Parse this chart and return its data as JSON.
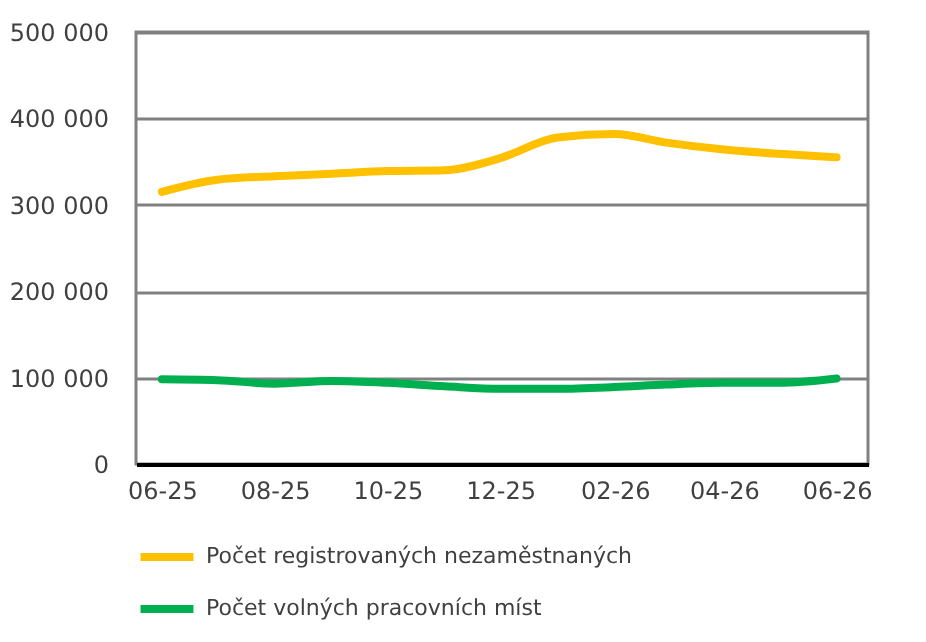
{
  "chart_data": {
    "type": "line",
    "x": [
      "2025-06",
      "2025-07",
      "2025-08",
      "2025-09",
      "2025-10",
      "2025-11",
      "2025-12",
      "2026-01",
      "2026-02",
      "2026-03",
      "2026-04",
      "2026-05",
      "2026-06"
    ],
    "series": [
      {
        "name": "Počet registrovaných nezaměstnaných",
        "color": "#ffc000",
        "values": [
          315000,
          329000,
          333000,
          336000,
          339000,
          340000,
          354000,
          378000,
          382000,
          372000,
          364000,
          359000,
          355000
        ]
      },
      {
        "name": "Počet volných pracovních míst",
        "color": "#00b050",
        "values": [
          98000,
          97000,
          93000,
          96000,
          94000,
          90000,
          87000,
          87000,
          89000,
          92000,
          94000,
          94000,
          99000
        ]
      }
    ],
    "xlim": [
      "2025-05-18",
      "2026-06-18"
    ],
    "xticks": [
      {
        "value": "2025-06",
        "label": "06-25"
      },
      {
        "value": "2025-08",
        "label": "08-25"
      },
      {
        "value": "2025-10",
        "label": "10-25"
      },
      {
        "value": "2025-12",
        "label": "12-25"
      },
      {
        "value": "2026-02",
        "label": "02-26"
      },
      {
        "value": "2026-04",
        "label": "04-26"
      },
      {
        "value": "2026-06",
        "label": "06-26"
      }
    ],
    "ylim": [
      0,
      500000
    ],
    "yticks": [
      {
        "value": 0,
        "label": "0"
      },
      {
        "value": 100000,
        "label": "100 000"
      },
      {
        "value": 200000,
        "label": "200 000"
      },
      {
        "value": 300000,
        "label": "300 000"
      },
      {
        "value": 400000,
        "label": "400 000"
      },
      {
        "value": 500000,
        "label": "500 000"
      }
    ],
    "grid": "y",
    "legend": "bottom",
    "marker": "none",
    "line_style": "solid"
  }
}
